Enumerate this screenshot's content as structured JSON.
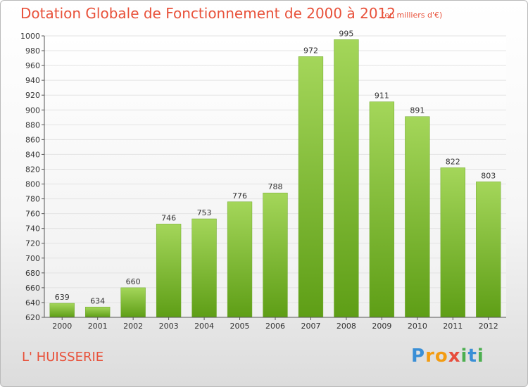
{
  "header": {
    "title": "Dotation Globale de Fonctionnement de 2000 à 2012",
    "subtitle": "(en milliers d'€)"
  },
  "commune": "L' HUISSERIE",
  "logo": {
    "text": "Proxiti",
    "letters": [
      "P",
      "r",
      "o",
      "x",
      "i",
      "t",
      "i"
    ],
    "colors": [
      "#3a8fd6",
      "#f39c12",
      "#f39c12",
      "#e74c3c",
      "#4caf50",
      "#3a8fd6",
      "#4caf50"
    ]
  },
  "chart_data": {
    "type": "bar",
    "title": "Dotation Globale de Fonctionnement de 2000 à 2012",
    "subtitle": "(en milliers d'€)",
    "xlabel": "",
    "ylabel": "",
    "categories": [
      "2000",
      "2001",
      "2002",
      "2003",
      "2004",
      "2005",
      "2006",
      "2007",
      "2008",
      "2009",
      "2010",
      "2011",
      "2012"
    ],
    "values": [
      639,
      634,
      660,
      746,
      753,
      776,
      788,
      972,
      995,
      911,
      891,
      822,
      803
    ],
    "data_labels": [
      "639",
      "634",
      "660",
      "746",
      "753",
      "776",
      "788",
      "972",
      "995",
      "911",
      "891",
      "822",
      "803"
    ],
    "ylim": [
      620,
      1000
    ],
    "yticks": [
      620,
      640,
      660,
      680,
      700,
      720,
      740,
      760,
      780,
      800,
      820,
      840,
      860,
      880,
      900,
      920,
      940,
      960,
      980,
      1000
    ],
    "ytick_labels": [
      "620",
      "640",
      "660",
      "680",
      "700",
      "720",
      "740",
      "760",
      "780",
      "800",
      "820",
      "840",
      "860",
      "880",
      "900",
      "920",
      "940",
      "960",
      "980",
      "1000"
    ],
    "grid": true,
    "legend": "none",
    "colors": {
      "bar_top": "#a4d65a",
      "bar_bottom": "#5e9e16",
      "grid": "#e3e3e3",
      "axis": "#555555",
      "text": "#333333"
    }
  }
}
